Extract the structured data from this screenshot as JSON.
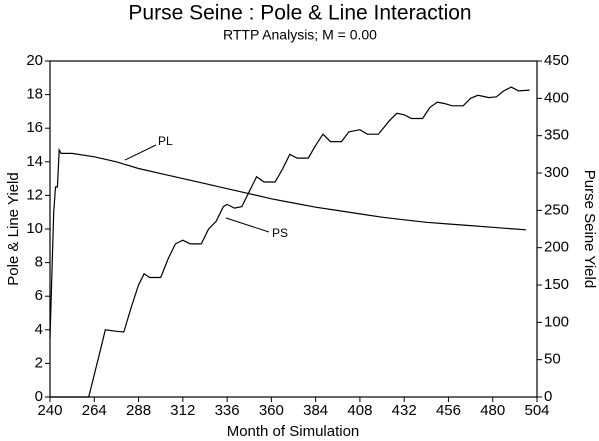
{
  "chart_data": {
    "type": "line",
    "title": "Purse Seine : Pole & Line Interaction",
    "subtitle": "RTTP Analysis; M = 0.00",
    "x_label": "Month of Simulation",
    "y_label": "Pole & Line Yield",
    "y2_label": "Purse Seine Yield",
    "xlim": [
      240,
      504
    ],
    "xticks": [
      240,
      264,
      288,
      312,
      336,
      360,
      384,
      408,
      432,
      456,
      480,
      504
    ],
    "ylim": [
      0,
      20
    ],
    "yticks": [
      0,
      2,
      4,
      6,
      8,
      10,
      12,
      14,
      16,
      18,
      20
    ],
    "y2lim": [
      0,
      450
    ],
    "y2ticks": [
      0,
      50,
      100,
      150,
      200,
      250,
      300,
      350,
      400,
      450
    ],
    "series": [
      {
        "name": "PL",
        "color": "#000000",
        "x": [
          240,
          242,
          243,
          244,
          245,
          246,
          252,
          264,
          276,
          288,
          300,
          312,
          324,
          336,
          348,
          360,
          372,
          384,
          396,
          408,
          420,
          432,
          444,
          456,
          468,
          480,
          492,
          498
        ],
        "values": [
          3.5,
          11,
          12.5,
          12.5,
          14.7,
          14.5,
          14.5,
          14.3,
          14,
          13.6,
          13.3,
          13,
          12.7,
          12.4,
          12.1,
          11.8,
          11.55,
          11.3,
          11.1,
          10.9,
          10.7,
          10.55,
          10.4,
          10.3,
          10.2,
          10.1,
          10,
          9.95
        ]
      },
      {
        "name": "PS",
        "color": "#000000",
        "axis": "y2",
        "x": [
          240,
          261,
          264,
          268,
          270,
          276,
          280,
          284,
          288,
          291,
          294,
          300,
          304,
          308,
          312,
          316,
          322,
          326,
          330,
          334,
          336,
          340,
          344,
          348,
          352,
          356,
          362,
          366,
          370,
          374,
          380,
          384,
          388,
          392,
          398,
          402,
          408,
          412,
          418,
          424,
          428,
          432,
          436,
          442,
          446,
          450,
          454,
          458,
          464,
          468,
          472,
          478,
          482,
          486,
          490,
          494,
          500
        ],
        "values": [
          0,
          0,
          30,
          70,
          90,
          88,
          87,
          120,
          150,
          165,
          160,
          160,
          185,
          205,
          210,
          205,
          205,
          225,
          235,
          255,
          258,
          253,
          255,
          275,
          295,
          288,
          288,
          305,
          325,
          320,
          320,
          337,
          352,
          342,
          342,
          355,
          358,
          352,
          352,
          370,
          380,
          378,
          373,
          373,
          388,
          395,
          393,
          390,
          390,
          400,
          404,
          401,
          402,
          410,
          415,
          410,
          411
        ]
      }
    ]
  }
}
